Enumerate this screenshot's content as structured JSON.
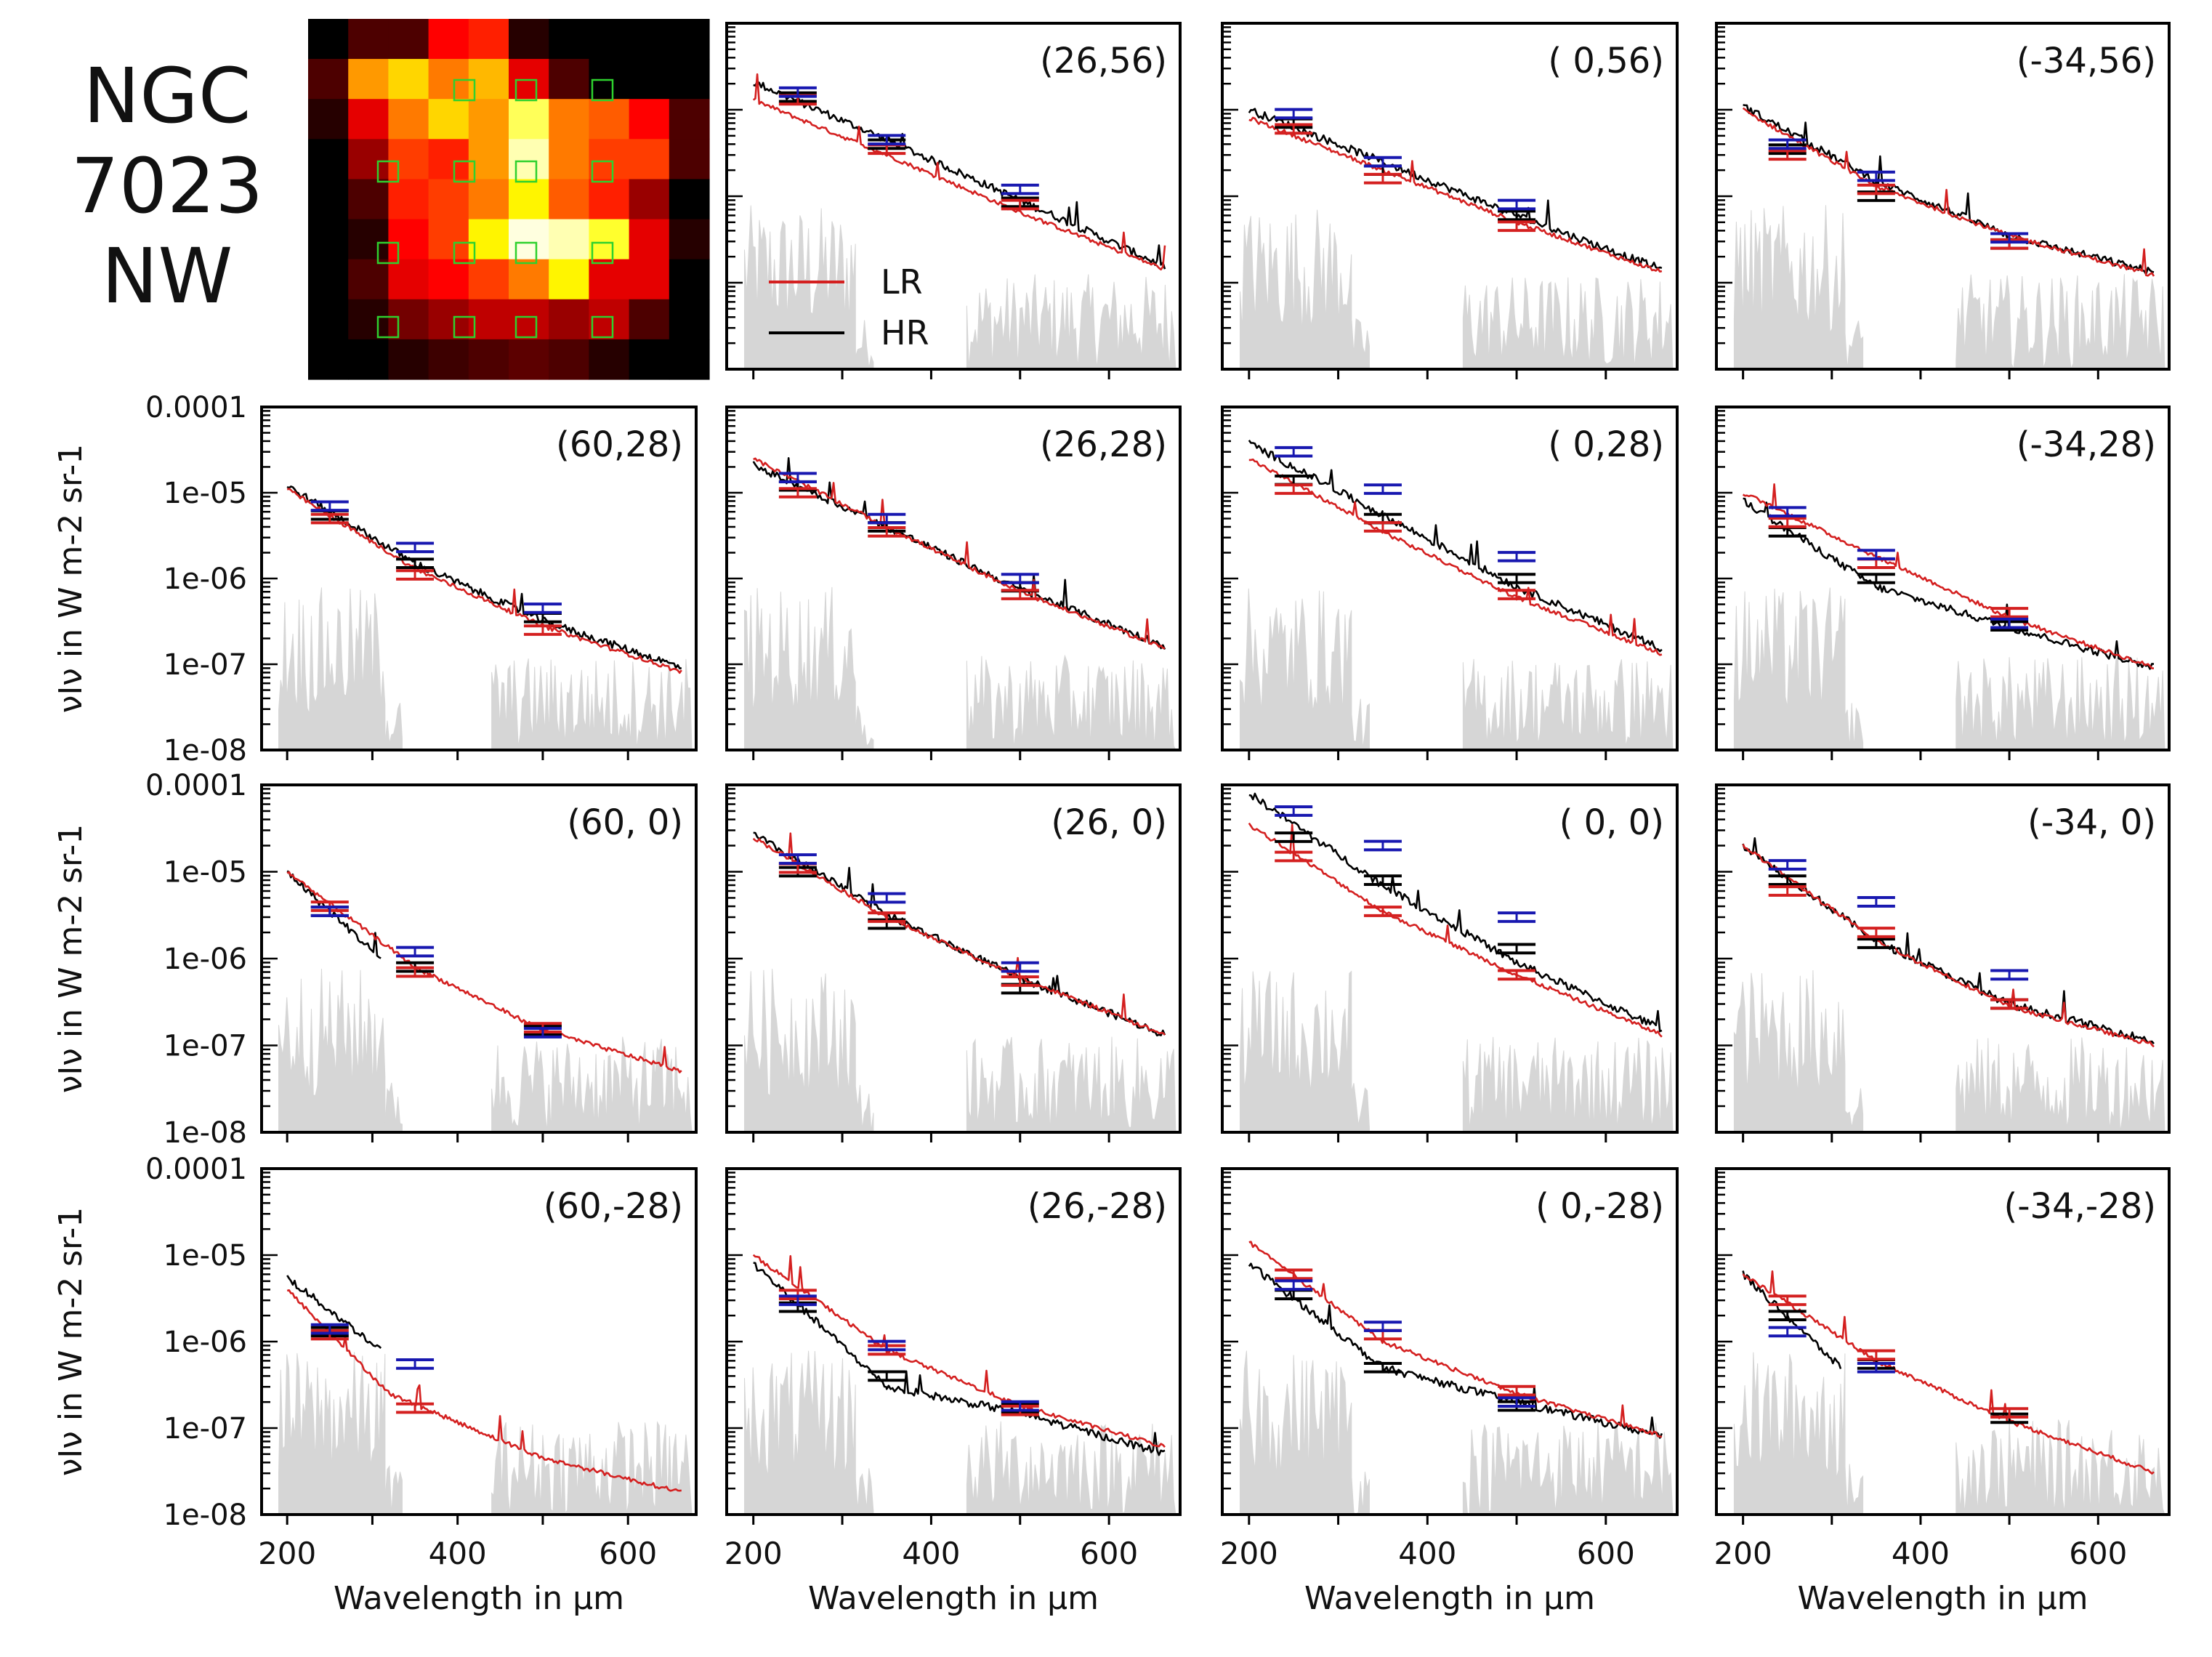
{
  "figure": {
    "title_lines": [
      "NGC",
      "7023",
      "NW"
    ],
    "legend": [
      {
        "label": "LR",
        "color": "#d42020"
      },
      {
        "label": "HR",
        "color": "#000000"
      }
    ],
    "colors": {
      "lr": "#d42020",
      "hr": "#000000",
      "photometry": "#1818b0",
      "noise": "#d6d6d6",
      "map_boxes": "#2ed12e"
    }
  },
  "chart_data": {
    "type": "line",
    "x_axis": {
      "label": "Wavelength in μm",
      "range": [
        170,
        680
      ],
      "ticks": [
        200,
        400,
        600
      ],
      "tick_labels": [
        "200",
        "400",
        "600"
      ],
      "minor_ticks": [
        300,
        500
      ]
    },
    "y_axis": {
      "label": "νIν in W m-2 sr-1",
      "scale": "log",
      "range": [
        1e-08,
        0.0001
      ],
      "tick_values": [
        1e-08,
        1e-07,
        1e-06,
        1e-05,
        0.0001
      ],
      "tick_labels": [
        "1e-08",
        "1e-07",
        "1e-06",
        "1e-05",
        "0.0001"
      ]
    },
    "map_image": {
      "rows": 9,
      "cols": 10,
      "description": "SPIRE map with detector positions"
    },
    "panels": [
      {
        "label": "(26,56)",
        "lr": [
          [
            200,
            1.3e-05
          ],
          [
            350,
            3e-06
          ],
          [
            500,
            6.5e-07
          ],
          [
            665,
            1.4e-07
          ]
        ],
        "hr": [
          [
            200,
            2.1e-05
          ],
          [
            350,
            4.5e-06
          ],
          [
            500,
            9e-07
          ],
          [
            665,
            1.5e-07
          ]
        ],
        "phot_blue": [
          [
            250,
            1.6e-05
          ],
          [
            350,
            4.5e-06
          ],
          [
            500,
            1.2e-06
          ]
        ],
        "phot_red": [
          [
            250,
            1.3e-05
          ],
          [
            350,
            3.5e-06
          ],
          [
            500,
            8e-07
          ]
        ],
        "phot_black": [
          [
            250,
            1.4e-05
          ],
          [
            350,
            4e-06
          ],
          [
            500,
            8.5e-07
          ]
        ]
      },
      {
        "label": "( 0,56)",
        "lr": [
          [
            200,
            8e-06
          ],
          [
            350,
            2e-06
          ],
          [
            500,
            5e-07
          ],
          [
            665,
            1.3e-07
          ]
        ],
        "hr": [
          [
            200,
            1e-05
          ],
          [
            350,
            2.5e-06
          ],
          [
            500,
            6e-07
          ],
          [
            665,
            1.4e-07
          ]
        ],
        "phot_blue": [
          [
            250,
            9e-06
          ],
          [
            350,
            2.5e-06
          ],
          [
            500,
            8e-07
          ]
        ],
        "phot_red": [
          [
            250,
            6e-06
          ],
          [
            350,
            1.6e-06
          ],
          [
            500,
            4.5e-07
          ]
        ],
        "phot_black": [
          [
            250,
            7e-06
          ],
          [
            350,
            2e-06
          ],
          [
            500,
            6e-07
          ]
        ]
      },
      {
        "label": "(-34,56)",
        "lr": [
          [
            200,
            1e-05
          ],
          [
            350,
            1.3e-06
          ],
          [
            500,
            3.5e-07
          ],
          [
            665,
            1.2e-07
          ]
        ],
        "hr": [
          [
            200,
            1.1e-05
          ],
          [
            350,
            1.5e-06
          ],
          [
            500,
            3.5e-07
          ],
          [
            665,
            1.3e-07
          ]
        ],
        "phot_blue": [
          [
            250,
            4e-06
          ],
          [
            350,
            1.7e-06
          ],
          [
            500,
            3.3e-07
          ]
        ],
        "phot_red": [
          [
            250,
            3e-06
          ],
          [
            350,
            1.2e-06
          ],
          [
            500,
            2.8e-07
          ]
        ],
        "phot_black": [
          [
            250,
            3.5e-06
          ],
          [
            350,
            1e-06
          ],
          [
            500,
            2.8e-07
          ]
        ]
      },
      {
        "label": "(60,28)",
        "lr": [
          [
            200,
            1.1e-05
          ],
          [
            350,
            1.3e-06
          ],
          [
            500,
            2.8e-07
          ],
          [
            665,
            8e-08
          ]
        ],
        "hr": [
          [
            200,
            1.2e-05
          ],
          [
            350,
            1.5e-06
          ],
          [
            500,
            3.2e-07
          ],
          [
            665,
            9e-08
          ]
        ],
        "phot_blue": [
          [
            250,
            7e-06
          ],
          [
            350,
            2.3e-06
          ],
          [
            500,
            4.5e-07
          ]
        ],
        "phot_red": [
          [
            250,
            5e-06
          ],
          [
            350,
            1.1e-06
          ],
          [
            500,
            2.5e-07
          ]
        ],
        "phot_black": [
          [
            250,
            5.5e-06
          ],
          [
            350,
            1.5e-06
          ],
          [
            500,
            3.5e-07
          ]
        ]
      },
      {
        "label": "(26,28)",
        "lr": [
          [
            200,
            2.5e-05
          ],
          [
            350,
            4e-06
          ],
          [
            500,
            7e-07
          ],
          [
            665,
            1.5e-07
          ]
        ],
        "hr": [
          [
            200,
            2.1e-05
          ],
          [
            350,
            4e-06
          ],
          [
            500,
            7.5e-07
          ],
          [
            665,
            1.6e-07
          ]
        ],
        "phot_blue": [
          [
            250,
            1.5e-05
          ],
          [
            350,
            5e-06
          ],
          [
            500,
            1e-06
          ]
        ],
        "phot_red": [
          [
            250,
            1e-05
          ],
          [
            350,
            3.5e-06
          ],
          [
            500,
            6.5e-07
          ]
        ],
        "phot_black": [
          [
            250,
            1.2e-05
          ],
          [
            350,
            4e-06
          ],
          [
            500,
            8e-07
          ]
        ]
      },
      {
        "label": "( 0,28)",
        "lr": [
          [
            200,
            2.5e-05
          ],
          [
            350,
            3.5e-06
          ],
          [
            500,
            6e-07
          ],
          [
            665,
            1.3e-07
          ]
        ],
        "hr": [
          [
            200,
            3.8e-05
          ],
          [
            350,
            5.5e-06
          ],
          [
            500,
            8e-07
          ],
          [
            665,
            1.5e-07
          ]
        ],
        "phot_blue": [
          [
            250,
            3e-05
          ],
          [
            350,
            1.1e-05
          ],
          [
            500,
            1.8e-06
          ]
        ],
        "phot_red": [
          [
            250,
            1.1e-05
          ],
          [
            350,
            4e-06
          ],
          [
            500,
            6.5e-07
          ]
        ],
        "phot_black": [
          [
            250,
            1.4e-05
          ],
          [
            350,
            5e-06
          ],
          [
            500,
            1e-06
          ]
        ]
      },
      {
        "label": "(-34,28)",
        "lr": [
          [
            200,
            1e-05
          ],
          [
            350,
            1.8e-06
          ],
          [
            500,
            3.5e-07
          ],
          [
            665,
            9e-08
          ]
        ],
        "hr": [
          [
            200,
            8e-06
          ],
          [
            350,
            8e-07
          ],
          [
            500,
            2.7e-07
          ],
          [
            665,
            9e-08
          ]
        ],
        "phot_blue": [
          [
            250,
            6e-06
          ],
          [
            350,
            1.9e-06
          ],
          [
            500,
            3e-07
          ]
        ],
        "phot_red": [
          [
            250,
            4.5e-06
          ],
          [
            350,
            1.5e-06
          ],
          [
            500,
            4e-07
          ]
        ],
        "phot_black": [
          [
            250,
            3.5e-06
          ],
          [
            350,
            1e-06
          ],
          [
            500,
            2.8e-07
          ]
        ]
      },
      {
        "label": "(60, 0)",
        "lr": [
          [
            200,
            1e-05
          ],
          [
            350,
            8e-07
          ],
          [
            500,
            1.5e-07
          ],
          [
            665,
            5e-08
          ]
        ],
        "hr": [
          [
            200,
            1e-05
          ],
          [
            310,
            1e-06
          ]
        ],
        "phot_blue": [
          [
            250,
            3.5e-06
          ],
          [
            350,
            1.2e-06
          ],
          [
            500,
            1.4e-07
          ]
        ],
        "phot_red": [
          [
            250,
            4e-06
          ],
          [
            350,
            7e-07
          ],
          [
            500,
            1.6e-07
          ]
        ],
        "phot_black": [
          [
            250,
            3.5e-06
          ],
          [
            350,
            8e-07
          ],
          [
            500,
            1.5e-07
          ]
        ]
      },
      {
        "label": "(26, 0)",
        "lr": [
          [
            200,
            2.5e-05
          ],
          [
            350,
            3e-06
          ],
          [
            500,
            6e-07
          ],
          [
            665,
            1.3e-07
          ]
        ],
        "hr": [
          [
            200,
            2.7e-05
          ],
          [
            350,
            3.2e-06
          ],
          [
            500,
            6e-07
          ],
          [
            665,
            1.3e-07
          ]
        ],
        "phot_blue": [
          [
            250,
            1.4e-05
          ],
          [
            350,
            5e-06
          ],
          [
            500,
            8e-07
          ]
        ],
        "phot_red": [
          [
            250,
            1.1e-05
          ],
          [
            350,
            3e-06
          ],
          [
            500,
            5.5e-07
          ]
        ],
        "phot_black": [
          [
            250,
            1e-05
          ],
          [
            350,
            2.5e-06
          ],
          [
            500,
            4.5e-07
          ]
        ]
      },
      {
        "label": "( 0, 0)",
        "lr": [
          [
            200,
            3.5e-05
          ],
          [
            350,
            3.5e-06
          ],
          [
            500,
            6.5e-07
          ],
          [
            665,
            1.3e-07
          ]
        ],
        "hr": [
          [
            200,
            8e-05
          ],
          [
            350,
            7e-06
          ],
          [
            500,
            9e-07
          ],
          [
            665,
            1.5e-07
          ]
        ],
        "phot_blue": [
          [
            250,
            5e-05
          ],
          [
            350,
            2e-05
          ],
          [
            500,
            3e-06
          ]
        ],
        "phot_red": [
          [
            250,
            1.5e-05
          ],
          [
            350,
            3.5e-06
          ],
          [
            500,
            6.5e-07
          ]
        ],
        "phot_black": [
          [
            250,
            2.5e-05
          ],
          [
            350,
            8e-06
          ],
          [
            500,
            1.3e-06
          ]
        ]
      },
      {
        "label": "(-34, 0)",
        "lr": [
          [
            200,
            2e-05
          ],
          [
            350,
            1.6e-06
          ],
          [
            500,
            2.8e-07
          ],
          [
            665,
            1e-07
          ]
        ],
        "hr": [
          [
            200,
            2e-05
          ],
          [
            350,
            1.6e-06
          ],
          [
            500,
            3e-07
          ],
          [
            665,
            1.1e-07
          ]
        ],
        "phot_blue": [
          [
            250,
            1.2e-05
          ],
          [
            350,
            4.5e-06
          ],
          [
            500,
            6.5e-07
          ]
        ],
        "phot_red": [
          [
            250,
            6e-06
          ],
          [
            350,
            2e-06
          ],
          [
            500,
            3e-07
          ]
        ],
        "phot_black": [
          [
            250,
            8e-06
          ],
          [
            350,
            1.5e-06
          ],
          [
            500,
            3e-07
          ]
        ]
      },
      {
        "label": "(60,-28)",
        "lr": [
          [
            200,
            4e-06
          ],
          [
            320,
            2.5e-07
          ],
          [
            500,
            4.5e-08
          ],
          [
            665,
            1.8e-08
          ]
        ],
        "hr": [
          [
            200,
            5.5e-06
          ],
          [
            310,
            8e-07
          ]
        ],
        "phot_blue": [
          [
            250,
            1.4e-06
          ],
          [
            350,
            5.5e-07
          ]
        ],
        "phot_red": [
          [
            250,
            1.2e-06
          ],
          [
            350,
            1.7e-07
          ]
        ],
        "phot_black": [
          [
            250,
            1.3e-06
          ]
        ]
      },
      {
        "label": "(26,-28)",
        "lr": [
          [
            200,
            1e-05
          ],
          [
            350,
            8e-07
          ],
          [
            500,
            1.8e-07
          ],
          [
            665,
            6e-08
          ]
        ],
        "hr": [
          [
            200,
            8e-06
          ],
          [
            350,
            3e-07
          ],
          [
            500,
            1.5e-07
          ],
          [
            665,
            5e-08
          ]
        ],
        "phot_blue": [
          [
            250,
            3e-06
          ],
          [
            350,
            9e-07
          ],
          [
            500,
            1.8e-07
          ]
        ],
        "phot_red": [
          [
            250,
            3.5e-06
          ],
          [
            350,
            8e-07
          ],
          [
            500,
            1.6e-07
          ]
        ],
        "phot_black": [
          [
            250,
            2.5e-06
          ],
          [
            350,
            4e-07
          ],
          [
            500,
            1.7e-07
          ]
        ]
      },
      {
        "label": "( 0,-28)",
        "lr": [
          [
            200,
            1.4e-05
          ],
          [
            350,
            1e-06
          ],
          [
            500,
            2.5e-07
          ],
          [
            665,
            8e-08
          ]
        ],
        "hr": [
          [
            200,
            8e-06
          ],
          [
            350,
            5e-07
          ],
          [
            500,
            2e-07
          ],
          [
            665,
            8e-08
          ]
        ],
        "phot_blue": [
          [
            250,
            4.5e-06
          ],
          [
            350,
            1.5e-06
          ],
          [
            500,
            2e-07
          ]
        ],
        "phot_red": [
          [
            250,
            6e-06
          ],
          [
            350,
            1.2e-06
          ],
          [
            500,
            2.7e-07
          ]
        ],
        "phot_black": [
          [
            250,
            3.5e-06
          ],
          [
            350,
            5e-07
          ],
          [
            500,
            1.8e-07
          ]
        ]
      },
      {
        "label": "(-34,-28)",
        "lr": [
          [
            200,
            6e-06
          ],
          [
            350,
            6e-07
          ],
          [
            500,
            1.2e-07
          ],
          [
            665,
            3e-08
          ]
        ],
        "hr": [
          [
            200,
            6e-06
          ],
          [
            310,
            5e-07
          ]
        ],
        "phot_blue": [
          [
            250,
            1.3e-06
          ],
          [
            350,
            5e-07
          ]
        ],
        "phot_red": [
          [
            250,
            3e-06
          ],
          [
            350,
            7e-07
          ],
          [
            500,
            1.5e-07
          ]
        ],
        "phot_black": [
          [
            250,
            2e-06
          ],
          [
            350,
            5.5e-07
          ],
          [
            500,
            1.3e-07
          ]
        ]
      }
    ]
  }
}
